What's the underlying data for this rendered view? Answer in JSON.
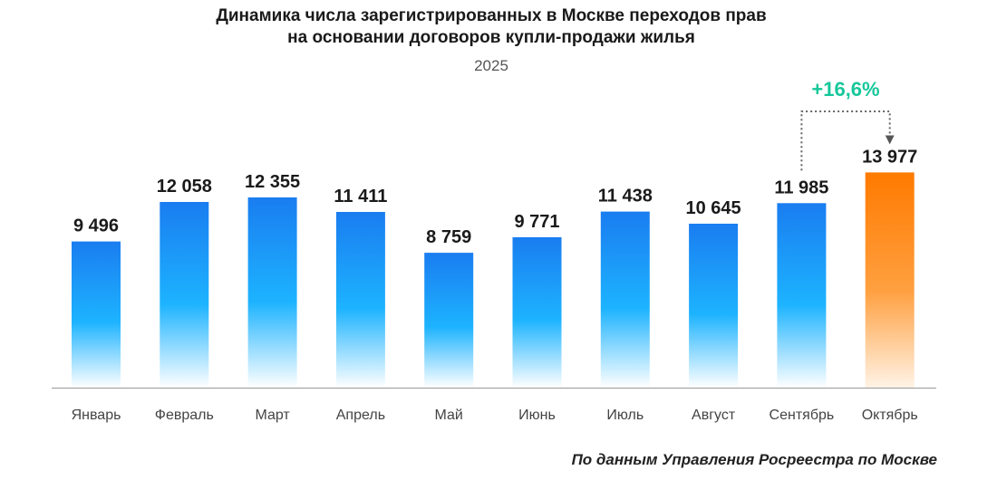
{
  "chart_data": {
    "type": "bar",
    "title_line1": "Динамика числа зарегистрированных в Москве переходов прав",
    "title_line2": "на основании договоров купли-продажи жилья",
    "subtitle": "2025",
    "categories": [
      "Январь",
      "Февраль",
      "Март",
      "Апрель",
      "Май",
      "Июнь",
      "Июль",
      "Август",
      "Сентябрь",
      "Октябрь"
    ],
    "values": [
      9496,
      12058,
      12355,
      11411,
      8759,
      9771,
      11438,
      10645,
      11985,
      13977
    ],
    "value_labels": [
      "9 496",
      "12 058",
      "12 355",
      "11 411",
      "8 759",
      "9 771",
      "11 438",
      "10 645",
      "11 985",
      "13 977"
    ],
    "highlight_index": 9,
    "annotation": {
      "text": "+16,6%",
      "from_category": "Сентябрь",
      "to_category": "Октябрь"
    },
    "ylim": [
      0,
      14000
    ],
    "grid": false,
    "xlabel": "",
    "ylabel": "",
    "source": "По данным Управления Росреестра по Москве"
  },
  "colors": {
    "bar_top": "#1a7df0",
    "bar_mid": "#1db3ff",
    "bar_bottom": "#ffffff",
    "highlight_top": "#ff7a00",
    "highlight_mid": "#ffa040",
    "highlight_bottom": "#fff3e6",
    "annotation": "#16c79a",
    "axis": "#999999"
  }
}
